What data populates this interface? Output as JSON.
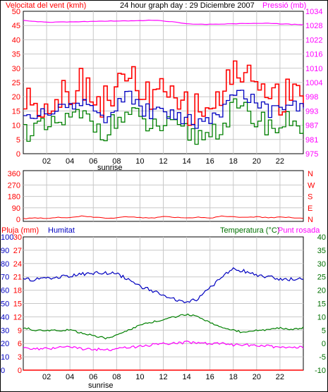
{
  "header": {
    "wind_label": "Velocitat del vent (kmh)",
    "date_title": "24 hour graph day : 29 Diciembre 2007",
    "pressure_label": "Pressió (mb)"
  },
  "colors": {
    "red": "#ff0000",
    "magenta": "#ff00ff",
    "blue": "#0000c0",
    "green": "#007000",
    "grid": "#c8c8c8"
  },
  "chart_data": [
    {
      "type": "line",
      "panel": "wind-pressure",
      "x": [
        0,
        1,
        2,
        3,
        4,
        5,
        6,
        7,
        8,
        9,
        10,
        11,
        12,
        13,
        14,
        15,
        16,
        17,
        18,
        19,
        20,
        21,
        22,
        23,
        24
      ],
      "x_tick_labels": [
        "02",
        "04",
        "06",
        "08",
        "10",
        "12",
        "14",
        "16",
        "18",
        "20",
        "22"
      ],
      "x_annotation": "sunrise",
      "y_left_ticks": [
        "0",
        "5",
        "10",
        "15",
        "20",
        "25",
        "30",
        "35",
        "40",
        "45",
        "50"
      ],
      "y_left_lim": [
        0,
        50
      ],
      "y_right_ticks": [
        "975",
        "981",
        "987",
        "993",
        "998",
        "1004",
        "1010",
        "1016",
        "1022",
        "1028",
        "1034"
      ],
      "y_right_lim": [
        975,
        1034
      ],
      "series": [
        {
          "color": "#ff0000",
          "axis": "left",
          "values": [
            18,
            19,
            17,
            21,
            23,
            25,
            20,
            18,
            24,
            27,
            22,
            19,
            21,
            18,
            16,
            15,
            18,
            20,
            31,
            28,
            24,
            21,
            19,
            25,
            20
          ]
        },
        {
          "color": "#0000c0",
          "axis": "left",
          "values": [
            13,
            14,
            13,
            16,
            17,
            18,
            15,
            13,
            18,
            20,
            16,
            14,
            15,
            13,
            12,
            11,
            13,
            15,
            22,
            20,
            17,
            15,
            14,
            18,
            14
          ]
        },
        {
          "color": "#008000",
          "axis": "left",
          "values": [
            8,
            9,
            8,
            11,
            12,
            13,
            10,
            8,
            12,
            14,
            11,
            9,
            10,
            8,
            7,
            6,
            8,
            10,
            16,
            14,
            12,
            10,
            9,
            13,
            9
          ]
        },
        {
          "color": "#ff00ff",
          "axis": "right",
          "values": [
            1030.2,
            1029.8,
            1029.5,
            1029.5,
            1029.6,
            1029.7,
            1029.8,
            1029.9,
            1030.0,
            1030.0,
            1030.1,
            1030.3,
            1030.0,
            1029.5,
            1028.8,
            1028.6,
            1028.6,
            1028.7,
            1028.8,
            1028.9,
            1029.0,
            1029.0,
            1028.8,
            1028.6,
            1028.4
          ]
        }
      ]
    },
    {
      "type": "line",
      "panel": "wind-direction",
      "x": [
        0,
        1,
        2,
        3,
        4,
        5,
        6,
        7,
        8,
        9,
        10,
        11,
        12,
        13,
        14,
        15,
        16,
        17,
        18,
        19,
        20,
        21,
        22,
        23,
        24
      ],
      "y_left_ticks": [
        "0",
        "90",
        "180",
        "270",
        "360"
      ],
      "y_left_lim": [
        0,
        360
      ],
      "y_right_ticks": [
        "N",
        "E",
        "S",
        "W",
        "N"
      ],
      "series": [
        {
          "color": "#ff0000",
          "values": [
            5,
            10,
            8,
            15,
            12,
            25,
            18,
            8,
            12,
            20,
            14,
            10,
            22,
            16,
            12,
            15,
            10,
            24,
            18,
            14,
            20,
            12,
            16,
            14,
            8
          ]
        }
      ]
    },
    {
      "type": "line",
      "panel": "rain-humidity-temperature",
      "labels": {
        "rain": "Pluja (mm)",
        "humidity": "Humitat",
        "temperature": "Temperatura (°C)",
        "dewpoint": "Punt rosada"
      },
      "x": [
        0,
        1,
        2,
        3,
        4,
        5,
        6,
        7,
        8,
        9,
        10,
        11,
        12,
        13,
        14,
        15,
        16,
        17,
        18,
        19,
        20,
        21,
        22,
        23,
        24
      ],
      "x_tick_labels": [
        "02",
        "04",
        "06",
        "08",
        "10",
        "12",
        "14",
        "16",
        "18",
        "20",
        "22"
      ],
      "x_annotation": "sunrise",
      "y_humidity_ticks": [
        "0",
        "10",
        "20",
        "30",
        "40",
        "50",
        "60",
        "70",
        "80",
        "90",
        "100"
      ],
      "y_rain_ticks": [
        "0",
        "3",
        "6",
        "9",
        "12",
        "15",
        "18",
        "21",
        "24",
        "27",
        "30"
      ],
      "y_rain_lim": [
        0,
        30
      ],
      "y_temp_ticks": [
        "-10",
        "-5",
        "0",
        "5",
        "10",
        "15",
        "20",
        "25",
        "30",
        "35",
        "40"
      ],
      "y_temp_lim": [
        -10,
        40
      ],
      "series": [
        {
          "color": "#0000c0",
          "axis": "humidity",
          "values": [
            68,
            68,
            69,
            70,
            71,
            72,
            73,
            73,
            72,
            68,
            63,
            60,
            57,
            53,
            50,
            54,
            62,
            70,
            76,
            74,
            71,
            70,
            68,
            68,
            69
          ]
        },
        {
          "color": "#008000",
          "axis": "temp",
          "values": [
            6,
            5,
            5,
            5,
            5,
            4,
            3,
            2,
            3,
            5,
            7,
            8,
            9,
            10,
            11,
            10,
            8,
            6,
            5,
            4,
            5,
            5,
            6,
            5,
            6
          ]
        },
        {
          "color": "#ff00ff",
          "axis": "temp",
          "values": [
            -1.5,
            -2,
            -2,
            -1.5,
            -1.5,
            -2,
            -2,
            -2.5,
            -2,
            -1.5,
            -1,
            -0.5,
            0,
            0,
            0.5,
            0,
            0,
            0,
            -0.5,
            -0.5,
            -1,
            -1,
            -1.5,
            -1.5,
            -1.5
          ]
        },
        {
          "color": "#ff0000",
          "axis": "rain",
          "values": [
            0,
            0,
            0,
            0,
            0,
            0,
            0,
            0,
            0,
            0,
            0,
            0,
            0,
            0,
            0,
            0,
            0,
            0,
            0,
            0,
            0,
            0,
            0,
            0,
            0
          ]
        }
      ]
    }
  ]
}
